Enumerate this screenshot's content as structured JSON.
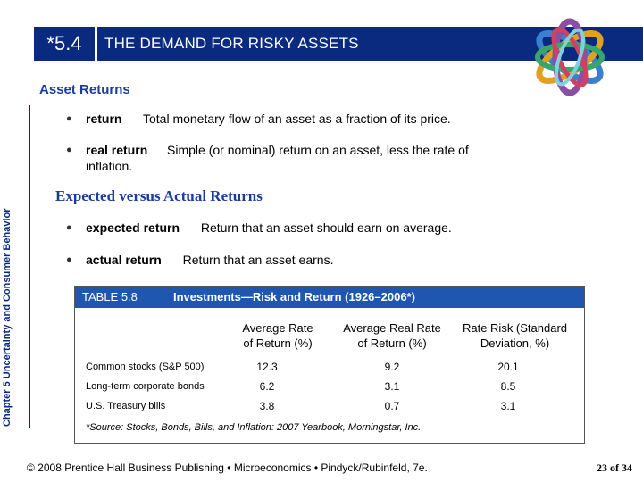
{
  "header": {
    "section_number": "*5.4",
    "title": "THE DEMAND FOR RISKY ASSETS"
  },
  "side_label": "Chapter 5 Uncertainty and Consumer Behavior",
  "asset_returns": {
    "heading": "Asset Returns",
    "items": [
      {
        "term": "return",
        "definition": "Total monetary flow of an asset as a fraction of its price."
      },
      {
        "term": "real return",
        "definition": "Simple (or nominal) return on an asset, less the rate of",
        "definition_cont": "inflation."
      }
    ]
  },
  "expected_vs_actual": {
    "heading": "Expected versus Actual Returns",
    "items": [
      {
        "term": "expected return",
        "definition": "Return that an asset should earn on average."
      },
      {
        "term": "actual return",
        "definition": "Return that an asset earns."
      }
    ]
  },
  "table": {
    "number": "TABLE 5.8",
    "title": "Investments—Risk and Return (1926–2006*)",
    "columns": [
      {
        "line1": "Average Rate",
        "line2": "of Return (%)"
      },
      {
        "line1": "Average Real Rate",
        "line2": "of Return (%)"
      },
      {
        "line1": "Rate Risk (Standard",
        "line2": "Deviation, %)"
      }
    ],
    "rows": [
      {
        "label": "Common stocks (S&P 500)",
        "values": [
          "12.3",
          "9.2",
          "20.1"
        ]
      },
      {
        "label": "Long-term corporate bonds",
        "values": [
          "6.2",
          "3.1",
          "8.5"
        ]
      },
      {
        "label": "U.S. Treasury bills",
        "values": [
          "3.8",
          "0.7",
          "3.1"
        ]
      }
    ],
    "source": "*Source: Stocks, Bonds, Bills, and Inflation: 2007 Yearbook, Morningstar, Inc."
  },
  "footer": {
    "text": "© 2008 Prentice Hall Business Publishing • Microeconomics • Pindyck/Rubinfeld, 7e.",
    "page": "23 of 34"
  },
  "colors": {
    "header_bg": "#0a2a80",
    "table_header_bg": "#1e56b0",
    "heading_text": "#1a3c9c"
  },
  "icons": [
    "rings-logo-icon",
    "bullet-dot-icon"
  ]
}
